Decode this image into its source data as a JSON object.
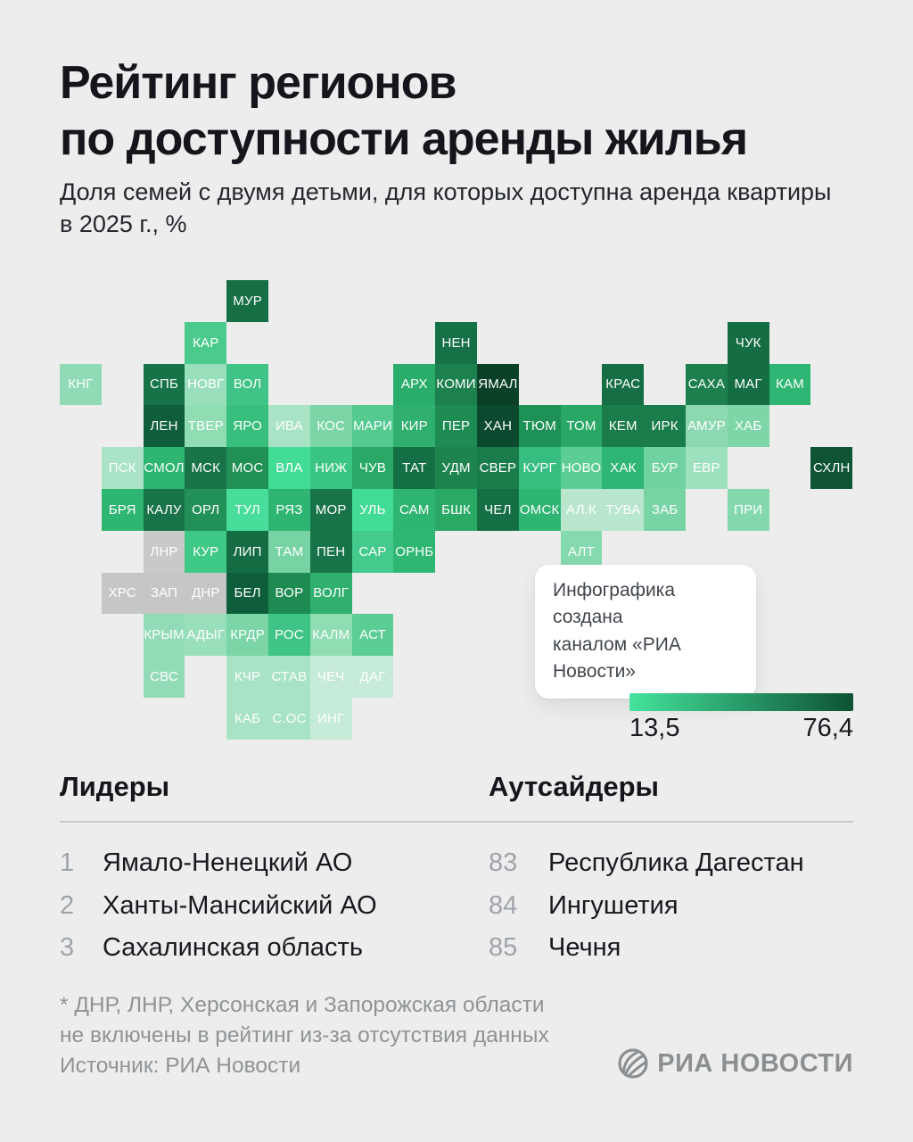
{
  "title": {
    "line1": "Рейтинг регионов",
    "line2": "по доступности аренды жилья"
  },
  "subtitle": {
    "line1": "Доля семей с двумя детьми, для которых доступна аренда квартиры",
    "line2": "в 2025 г., %"
  },
  "tooltip": {
    "line1": "Инфографика создана",
    "line2": "каналом «РИА Новости»"
  },
  "footnote": {
    "line1": "* ДНР, ЛНР, Херсонская и Запорожская области",
    "line2": "не включены в рейтинг из-за отсутствия данных"
  },
  "source": "Источник: РИА Новости",
  "logo": {
    "text": "РИА НОВОСТИ"
  },
  "chart_data": {
    "type": "heatmap",
    "subtype": "tile-cartogram-of-russia",
    "title": "Рейтинг регионов по доступности аренды жилья",
    "subtitle": "Доля семей с двумя детьми, для которых доступна аренда квартиры в 2025 г., %",
    "scale": {
      "min": 13.5,
      "max": 76.4,
      "min_label": "13,5",
      "max_label": "76,4",
      "color_low": "#44e39d",
      "color_high": "#0d5233",
      "excluded_color": "#c7c9c8"
    },
    "leaders": {
      "title": "Лидеры",
      "items": [
        {
          "rank": "1",
          "name": "Ямало-Ненецкий АО"
        },
        {
          "rank": "2",
          "name": "Ханты-Мансийский АО"
        },
        {
          "rank": "3",
          "name": "Сахалинская область"
        }
      ]
    },
    "outsiders": {
      "title": "Аутсайдеры",
      "items": [
        {
          "rank": "83",
          "name": "Республика Дагестан"
        },
        {
          "rank": "84",
          "name": "Ингушетия"
        },
        {
          "rank": "85",
          "name": "Чечня"
        }
      ]
    },
    "tiles": [
      {
        "code": "МУР",
        "col": 4,
        "row": 0,
        "color": "#156e44"
      },
      {
        "code": "КАР",
        "col": 3,
        "row": 1,
        "color": "#4bca8d"
      },
      {
        "code": "НЕН",
        "col": 9,
        "row": 1,
        "color": "#177147"
      },
      {
        "code": "ЧУК",
        "col": 16,
        "row": 1,
        "color": "#156e43"
      },
      {
        "code": "КНГ",
        "col": 0,
        "row": 2,
        "color": "#90dab5"
      },
      {
        "code": "СПБ",
        "col": 2,
        "row": 2,
        "color": "#157347"
      },
      {
        "code": "НОВГ",
        "col": 3,
        "row": 2,
        "color": "#9adfbc"
      },
      {
        "code": "ВОЛ",
        "col": 4,
        "row": 2,
        "color": "#40c386"
      },
      {
        "code": "АРХ",
        "col": 8,
        "row": 2,
        "color": "#2aad6b"
      },
      {
        "code": "КОМИ",
        "col": 9,
        "row": 2,
        "color": "#1d814f"
      },
      {
        "code": "ЯМАЛ",
        "col": 10,
        "row": 2,
        "color": "#0b4227"
      },
      {
        "code": "КРАС",
        "col": 13,
        "row": 2,
        "color": "#166f44"
      },
      {
        "code": "САХА",
        "col": 15,
        "row": 2,
        "color": "#1c7f4d"
      },
      {
        "code": "МАГ",
        "col": 16,
        "row": 2,
        "color": "#156e43"
      },
      {
        "code": "КАМ",
        "col": 17,
        "row": 2,
        "color": "#2fb674"
      },
      {
        "code": "ЛЕН",
        "col": 2,
        "row": 3,
        "color": "#0f5e3b"
      },
      {
        "code": "ТВЕР",
        "col": 3,
        "row": 3,
        "color": "#90dcb3"
      },
      {
        "code": "ЯРО",
        "col": 4,
        "row": 3,
        "color": "#38bf7e"
      },
      {
        "code": "ИВА",
        "col": 5,
        "row": 3,
        "color": "#a9e3c5"
      },
      {
        "code": "КОС",
        "col": 6,
        "row": 3,
        "color": "#7cd5a7"
      },
      {
        "code": "МАРИ",
        "col": 7,
        "row": 3,
        "color": "#54ca90"
      },
      {
        "code": "КИР",
        "col": 8,
        "row": 3,
        "color": "#2fb06f"
      },
      {
        "code": "ПЕР",
        "col": 9,
        "row": 3,
        "color": "#1e8b53"
      },
      {
        "code": "ХАН",
        "col": 10,
        "row": 3,
        "color": "#0b4a2e"
      },
      {
        "code": "ТЮМ",
        "col": 11,
        "row": 3,
        "color": "#1e9156"
      },
      {
        "code": "ТОМ",
        "col": 12,
        "row": 3,
        "color": "#28a765"
      },
      {
        "code": "КЕМ",
        "col": 13,
        "row": 3,
        "color": "#1b7c4b"
      },
      {
        "code": "ИРК",
        "col": 14,
        "row": 3,
        "color": "#1b7c4b"
      },
      {
        "code": "АМУР",
        "col": 15,
        "row": 3,
        "color": "#8cd9b1"
      },
      {
        "code": "ХАБ",
        "col": 16,
        "row": 3,
        "color": "#7ed5a8"
      },
      {
        "code": "ПСК",
        "col": 1,
        "row": 4,
        "color": "#abe3c6"
      },
      {
        "code": "СМОЛ",
        "col": 2,
        "row": 4,
        "color": "#2eb572"
      },
      {
        "code": "МСК",
        "col": 3,
        "row": 4,
        "color": "#187349"
      },
      {
        "code": "МОС",
        "col": 4,
        "row": 4,
        "color": "#219055"
      },
      {
        "code": "ВЛА",
        "col": 5,
        "row": 4,
        "color": "#43dc97"
      },
      {
        "code": "НИЖ",
        "col": 6,
        "row": 4,
        "color": "#3bc583"
      },
      {
        "code": "ЧУВ",
        "col": 7,
        "row": 4,
        "color": "#2aa966"
      },
      {
        "code": "ТАТ",
        "col": 8,
        "row": 4,
        "color": "#156f45"
      },
      {
        "code": "УДМ",
        "col": 9,
        "row": 4,
        "color": "#1d8450"
      },
      {
        "code": "СВЕР",
        "col": 10,
        "row": 4,
        "color": "#1a7c4b"
      },
      {
        "code": "КУРГ",
        "col": 11,
        "row": 4,
        "color": "#37bd80"
      },
      {
        "code": "НОВО",
        "col": 12,
        "row": 4,
        "color": "#5ccd95"
      },
      {
        "code": "ХАК",
        "col": 13,
        "row": 4,
        "color": "#2fb674"
      },
      {
        "code": "БУР",
        "col": 14,
        "row": 4,
        "color": "#6fd2a0"
      },
      {
        "code": "ЕВР",
        "col": 15,
        "row": 4,
        "color": "#9de0bd"
      },
      {
        "code": "СХЛН",
        "col": 18,
        "row": 4,
        "color": "#0e5435"
      },
      {
        "code": "БРЯ",
        "col": 1,
        "row": 5,
        "color": "#2eb572"
      },
      {
        "code": "КАЛУ",
        "col": 2,
        "row": 5,
        "color": "#187349"
      },
      {
        "code": "ОРЛ",
        "col": 3,
        "row": 5,
        "color": "#219157"
      },
      {
        "code": "ТУЛ",
        "col": 4,
        "row": 5,
        "color": "#48dd9a"
      },
      {
        "code": "РЯЗ",
        "col": 5,
        "row": 5,
        "color": "#2eb572"
      },
      {
        "code": "МОР",
        "col": 6,
        "row": 5,
        "color": "#187349"
      },
      {
        "code": "УЛЬ",
        "col": 7,
        "row": 5,
        "color": "#43dc97"
      },
      {
        "code": "САМ",
        "col": 8,
        "row": 5,
        "color": "#2eb572"
      },
      {
        "code": "БШК",
        "col": 9,
        "row": 5,
        "color": "#2aa965"
      },
      {
        "code": "ЧЕЛ",
        "col": 10,
        "row": 5,
        "color": "#156f45"
      },
      {
        "code": "ОМСК",
        "col": 11,
        "row": 5,
        "color": "#2eb572"
      },
      {
        "code": "АЛ.К",
        "col": 12,
        "row": 5,
        "color": "#bae6ce"
      },
      {
        "code": "ТУВА",
        "col": 13,
        "row": 5,
        "color": "#b9e6ce"
      },
      {
        "code": "ЗАБ",
        "col": 14,
        "row": 5,
        "color": "#79d4a5"
      },
      {
        "code": "ПРИ",
        "col": 16,
        "row": 5,
        "color": "#84d8ad"
      },
      {
        "code": "ЛНР",
        "col": 2,
        "row": 6,
        "color": "#c8cac9"
      },
      {
        "code": "КУР",
        "col": 3,
        "row": 6,
        "color": "#3fc986"
      },
      {
        "code": "ЛИП",
        "col": 4,
        "row": 6,
        "color": "#146c42"
      },
      {
        "code": "ТАМ",
        "col": 5,
        "row": 6,
        "color": "#77d3a4"
      },
      {
        "code": "ПЕН",
        "col": 6,
        "row": 6,
        "color": "#187349"
      },
      {
        "code": "САР",
        "col": 7,
        "row": 6,
        "color": "#44ca8c"
      },
      {
        "code": "ОРНБ",
        "col": 8,
        "row": 6,
        "color": "#2fb673"
      },
      {
        "code": "АЛТ",
        "col": 12,
        "row": 6,
        "color": "#84d9ae"
      },
      {
        "code": "ХРС",
        "col": 1,
        "row": 7,
        "color": "#c5c7c6"
      },
      {
        "code": "ЗАП",
        "col": 2,
        "row": 7,
        "color": "#c5c7c6"
      },
      {
        "code": "ДНР",
        "col": 3,
        "row": 7,
        "color": "#c5c7c6"
      },
      {
        "code": "БЕЛ",
        "col": 4,
        "row": 7,
        "color": "#0f5e3b"
      },
      {
        "code": "ВОР",
        "col": 5,
        "row": 7,
        "color": "#1e8b53"
      },
      {
        "code": "ВОЛГ",
        "col": 6,
        "row": 7,
        "color": "#2fb06f"
      },
      {
        "code": "КРЫМ",
        "col": 2,
        "row": 8,
        "color": "#93dbb7"
      },
      {
        "code": "АДЫГ",
        "col": 3,
        "row": 8,
        "color": "#9adfbc"
      },
      {
        "code": "КРДР",
        "col": 4,
        "row": 8,
        "color": "#7cd5a7"
      },
      {
        "code": "РОС",
        "col": 5,
        "row": 8,
        "color": "#40c386"
      },
      {
        "code": "КАЛМ",
        "col": 6,
        "row": 8,
        "color": "#90dcb3"
      },
      {
        "code": "АСТ",
        "col": 7,
        "row": 8,
        "color": "#5ccd95"
      },
      {
        "code": "СВС",
        "col": 2,
        "row": 9,
        "color": "#93dbb7"
      },
      {
        "code": "КЧР",
        "col": 4,
        "row": 9,
        "color": "#a9e3c5"
      },
      {
        "code": "СТАВ",
        "col": 5,
        "row": 9,
        "color": "#a9e3c5"
      },
      {
        "code": "ЧЕЧ",
        "col": 6,
        "row": 9,
        "color": "#c6ebd8"
      },
      {
        "code": "ДАГ",
        "col": 7,
        "row": 9,
        "color": "#c6ebd8"
      },
      {
        "code": "КАБ",
        "col": 4,
        "row": 10,
        "color": "#a9e3c5"
      },
      {
        "code": "С.ОС",
        "col": 5,
        "row": 10,
        "color": "#a9e3c5"
      },
      {
        "code": "ИНГ",
        "col": 6,
        "row": 10,
        "color": "#c6ebd8"
      }
    ]
  }
}
